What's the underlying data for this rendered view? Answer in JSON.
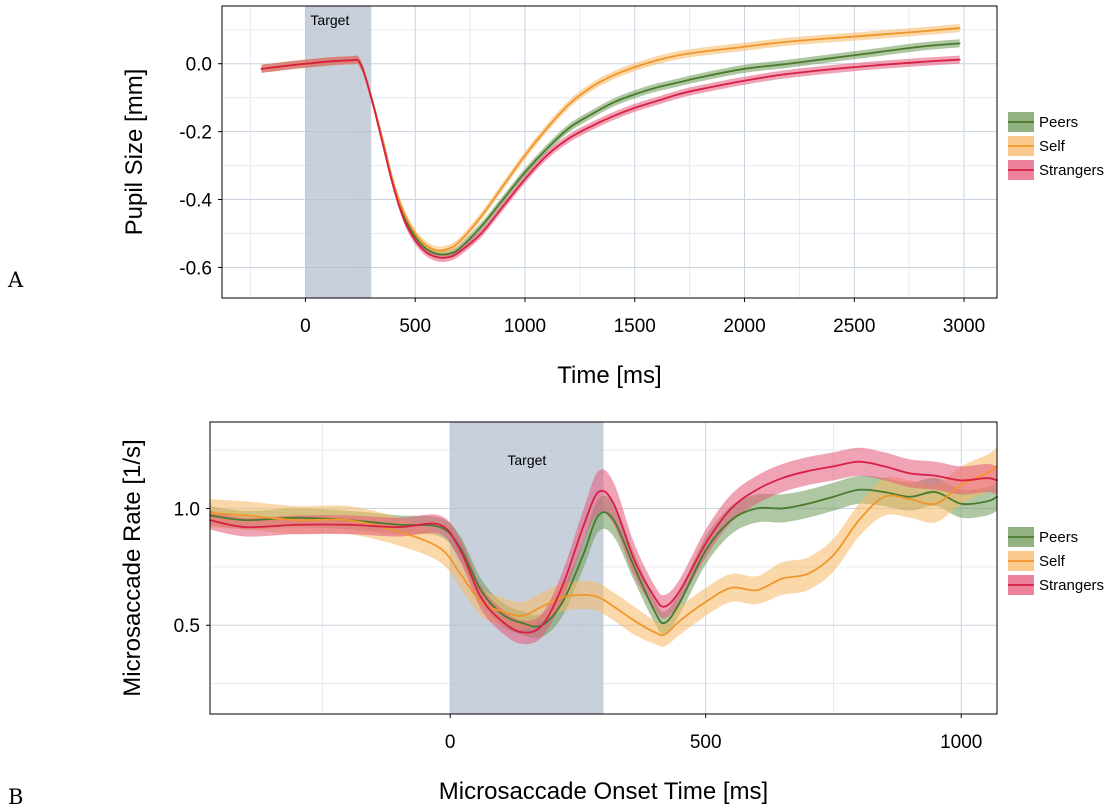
{
  "colors": {
    "Peers": "#4a7a2e",
    "Self": "#f0962a",
    "Strangers": "#d81f45",
    "Peers_band": "#6e9a57",
    "Self_band": "#f7b865",
    "Strangers_band": "#e5587a",
    "shade": "#b3bfcd",
    "grid_major": "#c9d3e0",
    "grid_minor": "#e6ebf1"
  },
  "chart_data": [
    {
      "type": "line",
      "panel_label": "A",
      "xlabel": "Time [ms]",
      "ylabel": "Pupil Size [mm]",
      "xlim": [
        -380,
        3150
      ],
      "ylim": [
        -0.69,
        0.17
      ],
      "xticks": [
        0,
        500,
        1000,
        1500,
        2000,
        2500,
        3000
      ],
      "yticks": [
        0.0,
        -0.2,
        -0.4,
        -0.6
      ],
      "ytick_labels": [
        "0.0",
        "-0.2",
        "-0.4",
        "-0.6"
      ],
      "grid": true,
      "legend_position": "right",
      "shaded_region": {
        "label": "Target",
        "x0": 0,
        "x1": 300
      },
      "series": [
        {
          "name": "Peers",
          "x": [
            -200,
            0,
            200,
            250,
            300,
            350,
            400,
            450,
            500,
            550,
            600,
            650,
            700,
            800,
            900,
            1000,
            1100,
            1200,
            1300,
            1400,
            1500,
            1600,
            1700,
            1800,
            2000,
            2200,
            2500,
            2800,
            2980
          ],
          "y": [
            -0.015,
            0.0,
            0.01,
            0.0,
            -0.1,
            -0.22,
            -0.35,
            -0.45,
            -0.51,
            -0.545,
            -0.56,
            -0.56,
            -0.545,
            -0.48,
            -0.4,
            -0.32,
            -0.25,
            -0.19,
            -0.15,
            -0.115,
            -0.09,
            -0.07,
            -0.055,
            -0.04,
            -0.015,
            0.0,
            0.025,
            0.05,
            0.06
          ],
          "band": 0.012
        },
        {
          "name": "Self",
          "x": [
            -200,
            0,
            200,
            250,
            300,
            350,
            400,
            450,
            500,
            550,
            600,
            650,
            700,
            800,
            900,
            1000,
            1100,
            1200,
            1300,
            1400,
            1500,
            1600,
            1700,
            1800,
            2000,
            2200,
            2500,
            2800,
            2980
          ],
          "y": [
            -0.015,
            0.0,
            0.01,
            0.0,
            -0.1,
            -0.22,
            -0.35,
            -0.44,
            -0.5,
            -0.535,
            -0.55,
            -0.545,
            -0.525,
            -0.45,
            -0.36,
            -0.27,
            -0.19,
            -0.12,
            -0.07,
            -0.035,
            -0.01,
            0.01,
            0.025,
            0.035,
            0.05,
            0.065,
            0.08,
            0.095,
            0.105
          ],
          "band": 0.012
        },
        {
          "name": "Strangers",
          "x": [
            -200,
            0,
            200,
            250,
            300,
            350,
            400,
            450,
            500,
            550,
            600,
            650,
            700,
            800,
            900,
            1000,
            1100,
            1200,
            1300,
            1400,
            1500,
            1600,
            1700,
            1800,
            2000,
            2200,
            2500,
            2800,
            2980
          ],
          "y": [
            -0.015,
            0.0,
            0.01,
            0.0,
            -0.1,
            -0.23,
            -0.36,
            -0.46,
            -0.52,
            -0.555,
            -0.57,
            -0.57,
            -0.555,
            -0.5,
            -0.42,
            -0.34,
            -0.27,
            -0.22,
            -0.185,
            -0.155,
            -0.13,
            -0.11,
            -0.09,
            -0.075,
            -0.05,
            -0.03,
            -0.01,
            0.005,
            0.012
          ],
          "band": 0.012
        }
      ]
    },
    {
      "type": "line",
      "panel_label": "B",
      "xlabel": "Microsaccade Onset Time [ms]",
      "ylabel": "Microsaccade Rate [1/s]",
      "xlim": [
        -470,
        1070
      ],
      "ylim": [
        0.12,
        1.37
      ],
      "xticks": [
        0,
        500,
        1000
      ],
      "yticks": [
        0.5,
        1.0
      ],
      "ytick_labels": [
        "0.5",
        "1.0"
      ],
      "grid": true,
      "legend_position": "right",
      "shaded_region": {
        "label": "Target",
        "x0": 0,
        "x1": 300
      },
      "series": [
        {
          "name": "Peers",
          "x": [
            -470,
            -400,
            -300,
            -200,
            -100,
            -20,
            20,
            60,
            100,
            140,
            180,
            220,
            260,
            290,
            320,
            360,
            400,
            420,
            450,
            500,
            550,
            600,
            650,
            700,
            750,
            800,
            850,
            900,
            950,
            1000,
            1050,
            1070
          ],
          "y": [
            0.97,
            0.95,
            0.96,
            0.95,
            0.93,
            0.92,
            0.83,
            0.65,
            0.55,
            0.51,
            0.5,
            0.6,
            0.8,
            0.97,
            0.95,
            0.75,
            0.56,
            0.51,
            0.6,
            0.82,
            0.95,
            1.0,
            1.0,
            1.02,
            1.05,
            1.08,
            1.07,
            1.05,
            1.07,
            1.02,
            1.03,
            1.05
          ],
          "band": [
            0.04,
            0.04,
            0.04,
            0.04,
            0.04,
            0.04,
            0.05,
            0.05,
            0.05,
            0.05,
            0.05,
            0.06,
            0.06,
            0.07,
            0.07,
            0.06,
            0.05,
            0.05,
            0.05,
            0.06,
            0.06,
            0.06,
            0.06,
            0.06,
            0.06,
            0.06,
            0.06,
            0.06,
            0.06,
            0.06,
            0.06,
            0.06
          ]
        },
        {
          "name": "Self",
          "x": [
            -470,
            -400,
            -300,
            -200,
            -100,
            -20,
            20,
            60,
            100,
            140,
            180,
            220,
            260,
            290,
            320,
            360,
            400,
            420,
            450,
            500,
            550,
            600,
            650,
            700,
            750,
            800,
            850,
            900,
            950,
            1000,
            1050,
            1070
          ],
          "y": [
            0.98,
            0.97,
            0.95,
            0.95,
            0.9,
            0.83,
            0.72,
            0.6,
            0.56,
            0.54,
            0.58,
            0.62,
            0.63,
            0.62,
            0.58,
            0.52,
            0.47,
            0.46,
            0.52,
            0.6,
            0.66,
            0.65,
            0.7,
            0.72,
            0.8,
            0.95,
            1.05,
            1.04,
            1.02,
            1.1,
            1.15,
            1.18
          ],
          "band": [
            0.06,
            0.06,
            0.06,
            0.06,
            0.06,
            0.06,
            0.06,
            0.06,
            0.06,
            0.06,
            0.06,
            0.06,
            0.06,
            0.06,
            0.06,
            0.06,
            0.05,
            0.05,
            0.06,
            0.06,
            0.06,
            0.06,
            0.07,
            0.07,
            0.07,
            0.07,
            0.08,
            0.08,
            0.08,
            0.08,
            0.08,
            0.08
          ]
        },
        {
          "name": "Strangers",
          "x": [
            -470,
            -400,
            -300,
            -200,
            -100,
            -20,
            20,
            60,
            100,
            140,
            180,
            220,
            260,
            290,
            320,
            360,
            400,
            420,
            450,
            500,
            550,
            600,
            650,
            700,
            750,
            800,
            850,
            900,
            950,
            1000,
            1050,
            1070
          ],
          "y": [
            0.95,
            0.92,
            0.93,
            0.93,
            0.92,
            0.93,
            0.82,
            0.62,
            0.52,
            0.47,
            0.5,
            0.67,
            0.92,
            1.07,
            1.02,
            0.78,
            0.62,
            0.58,
            0.65,
            0.85,
            1.0,
            1.08,
            1.13,
            1.16,
            1.18,
            1.2,
            1.18,
            1.15,
            1.14,
            1.12,
            1.13,
            1.12
          ],
          "band": [
            0.04,
            0.04,
            0.04,
            0.04,
            0.04,
            0.04,
            0.05,
            0.05,
            0.05,
            0.05,
            0.05,
            0.06,
            0.07,
            0.09,
            0.09,
            0.07,
            0.05,
            0.05,
            0.05,
            0.06,
            0.06,
            0.06,
            0.06,
            0.06,
            0.06,
            0.06,
            0.06,
            0.06,
            0.06,
            0.06,
            0.06,
            0.06
          ]
        }
      ]
    }
  ]
}
